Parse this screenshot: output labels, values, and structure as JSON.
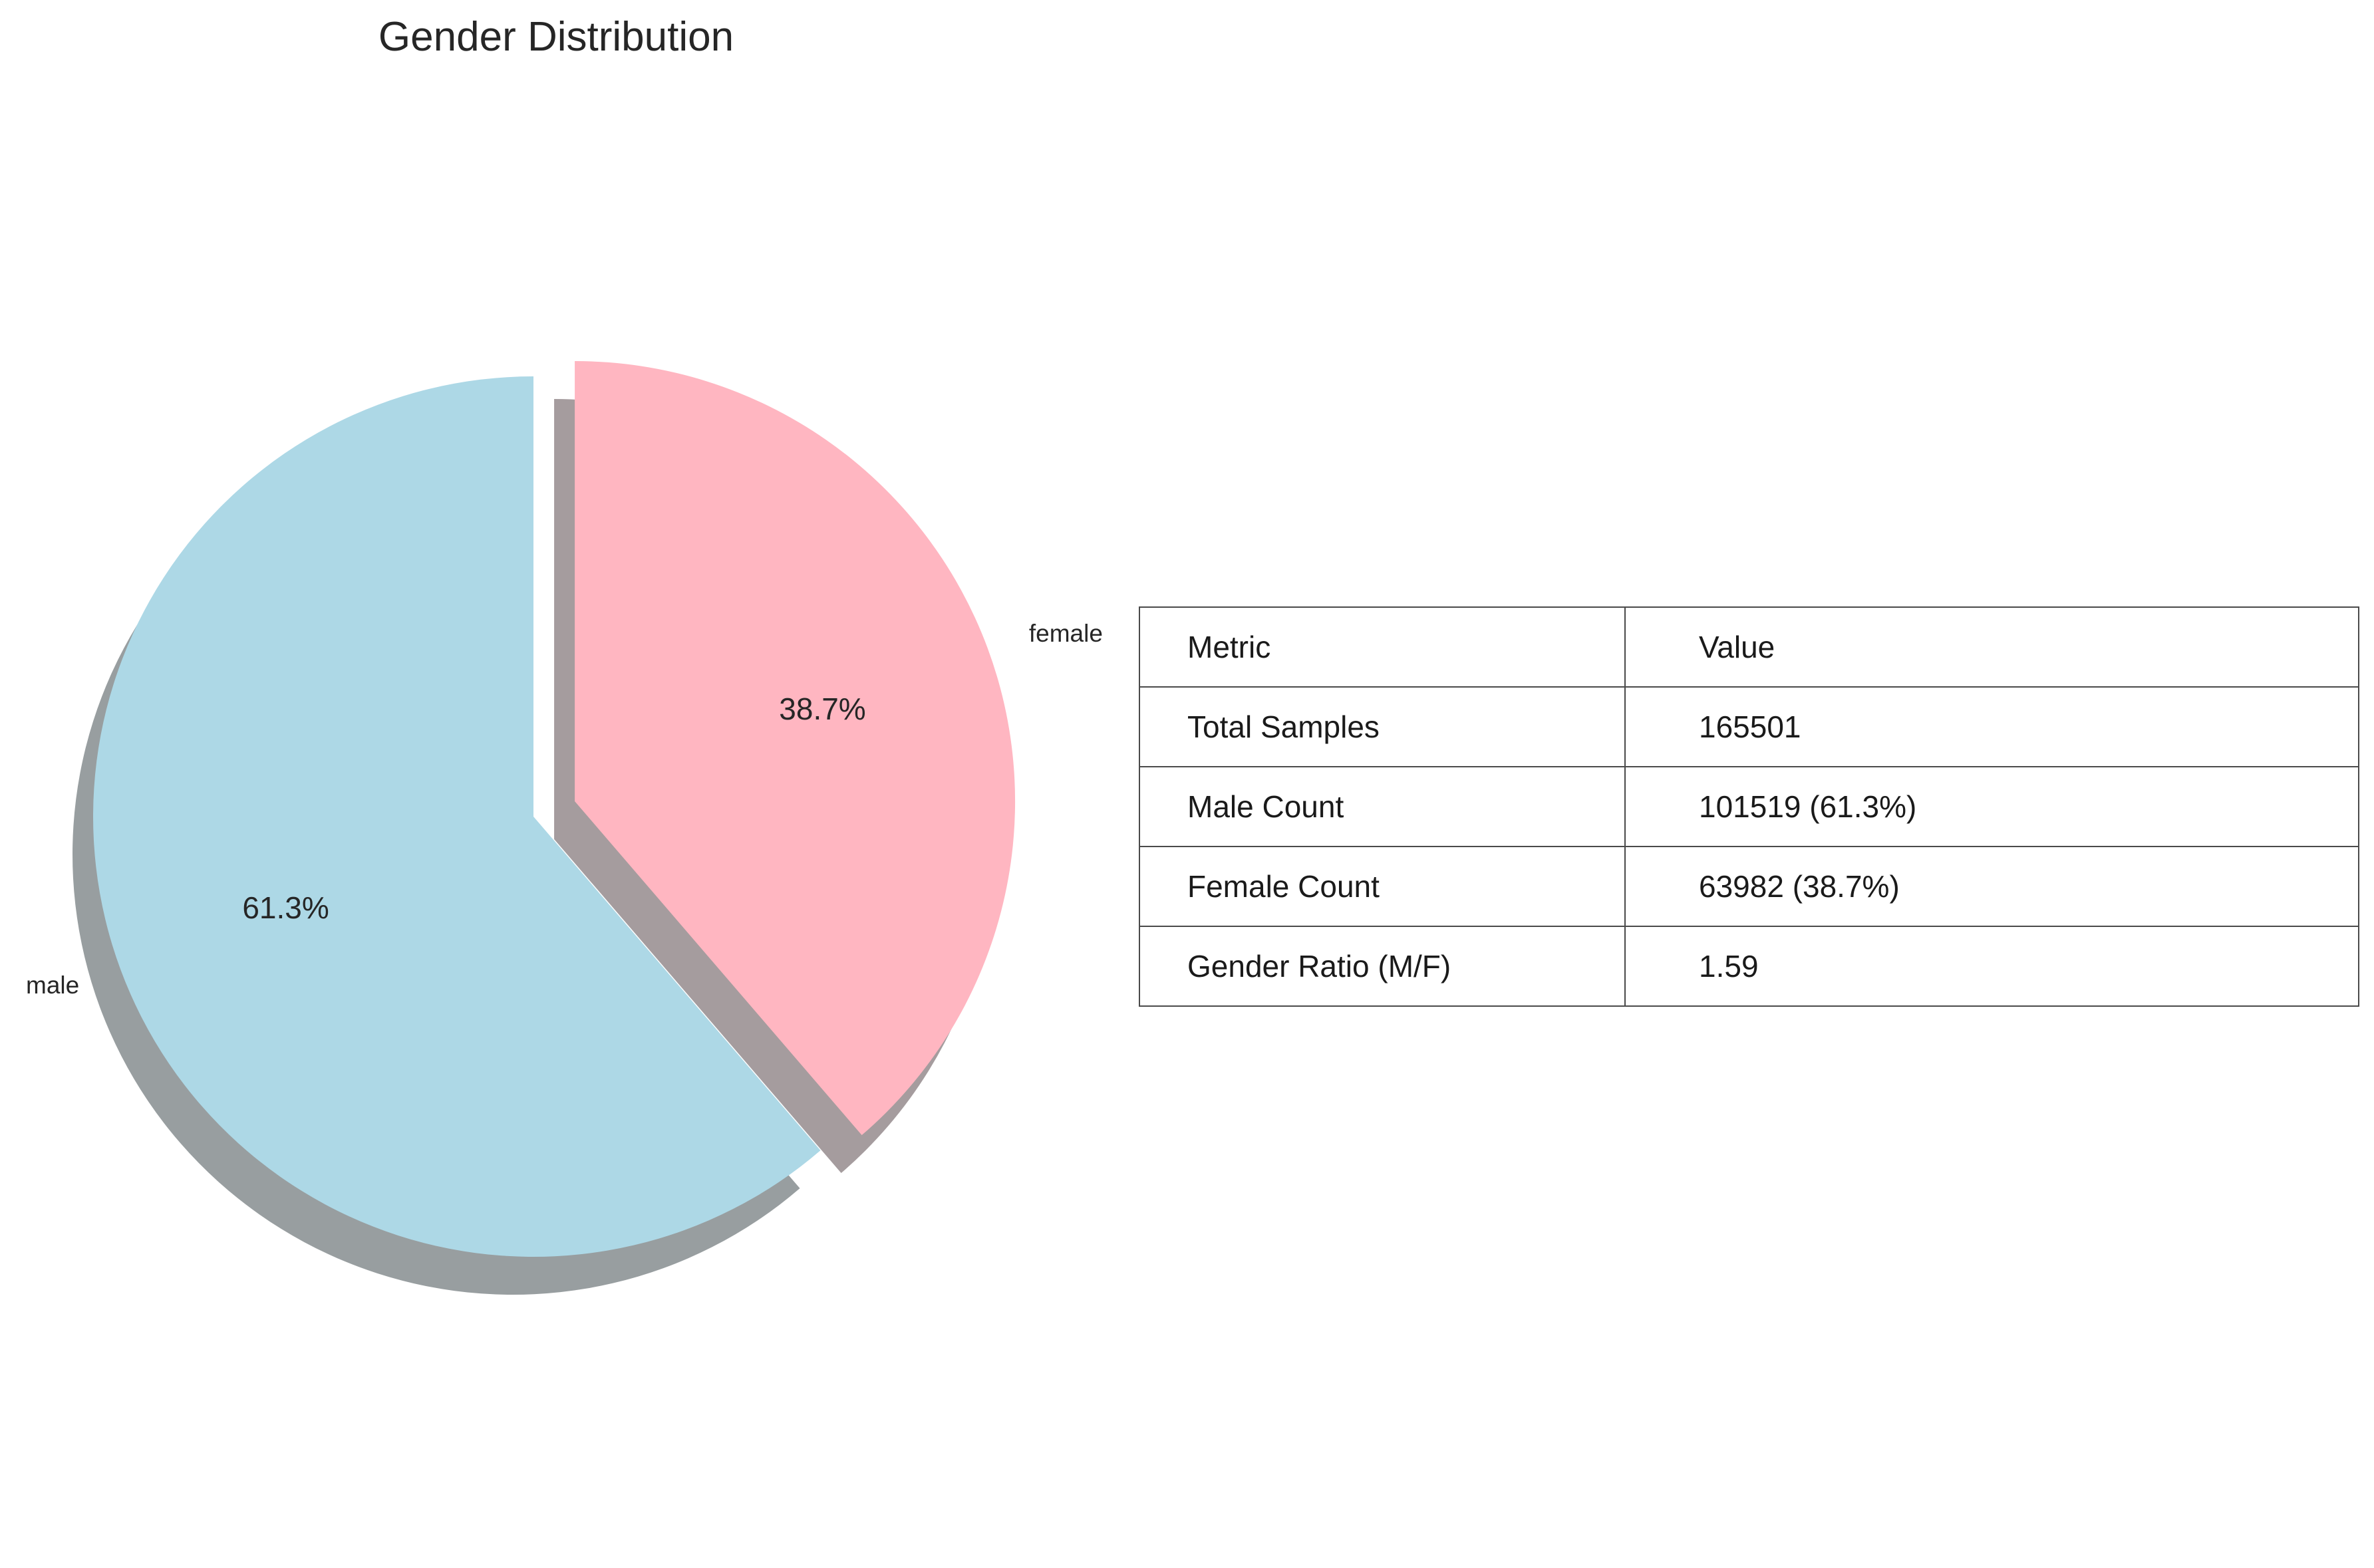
{
  "chart_data": [
    {
      "type": "pie",
      "title": "Gender Distribution",
      "categories": [
        "male",
        "female"
      ],
      "values": [
        61.3,
        38.7
      ],
      "autopct_labels": [
        "61.3%",
        "38.7%"
      ],
      "colors": [
        "#add8e6",
        "#ffb6c1"
      ],
      "shadow": true,
      "exploded": "female",
      "start": "top"
    },
    {
      "type": "table",
      "columns": [
        "Metric",
        "Value"
      ],
      "rows": [
        [
          "Total Samples",
          "165501"
        ],
        [
          "Male Count",
          "101519 (61.3%)"
        ],
        [
          "Female Count",
          "63982 (38.7%)"
        ],
        [
          "Gender Ratio (M/F)",
          "1.59"
        ]
      ]
    }
  ]
}
